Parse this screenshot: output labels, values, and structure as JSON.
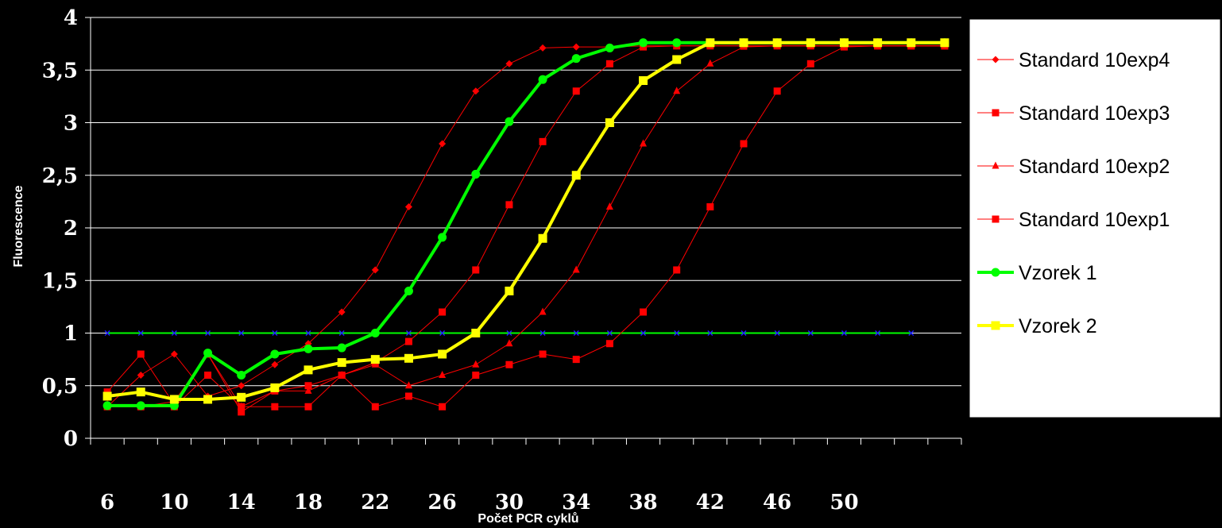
{
  "chart_data": {
    "type": "line",
    "title": "",
    "xlabel": "Počet PCR cyklů",
    "ylabel": "Fluorescence",
    "ylim": [
      0,
      4
    ],
    "xlim": [
      5,
      57
    ],
    "yticks": [
      {
        "value": 0,
        "label": "0"
      },
      {
        "value": 0.5,
        "label": "0,5"
      },
      {
        "value": 1,
        "label": "1"
      },
      {
        "value": 1.5,
        "label": "1,5"
      },
      {
        "value": 2,
        "label": "2"
      },
      {
        "value": 2.5,
        "label": "2,5"
      },
      {
        "value": 3,
        "label": "3"
      },
      {
        "value": 3.5,
        "label": "3,5"
      },
      {
        "value": 4,
        "label": "4"
      }
    ],
    "xticklabels": [
      {
        "value": 6,
        "label": "6"
      },
      {
        "value": 10,
        "label": "10"
      },
      {
        "value": 14,
        "label": "14"
      },
      {
        "value": 18,
        "label": "18"
      },
      {
        "value": 22,
        "label": "22"
      },
      {
        "value": 26,
        "label": "26"
      },
      {
        "value": 30,
        "label": "30"
      },
      {
        "value": 34,
        "label": "34"
      },
      {
        "value": 38,
        "label": "38"
      },
      {
        "value": 42,
        "label": "42"
      },
      {
        "value": 46,
        "label": "46"
      },
      {
        "value": 50,
        "label": "50"
      }
    ],
    "grid": true,
    "legend_position": "right",
    "x": [
      6,
      8,
      10,
      12,
      14,
      16,
      18,
      20,
      22,
      24,
      26,
      28,
      30,
      32,
      34,
      36,
      38,
      40,
      42,
      44,
      46,
      48,
      50,
      52,
      54,
      56
    ],
    "series": [
      {
        "name": "Standard 10exp4",
        "color": "#ff0000",
        "marker": "diamond",
        "width": 1,
        "values": [
          0.3,
          0.6,
          0.8,
          0.4,
          0.5,
          0.7,
          0.9,
          1.2,
          1.6,
          2.2,
          2.8,
          3.3,
          3.56,
          3.71,
          3.72,
          3.72,
          3.73,
          3.73,
          3.73,
          3.73,
          3.73,
          3.73,
          3.73,
          3.73,
          3.73,
          3.73
        ]
      },
      {
        "name": "Standard 10exp3",
        "color": "#ff0000",
        "marker": "square",
        "width": 1,
        "values": [
          0.44,
          0.8,
          0.32,
          0.8,
          0.25,
          0.45,
          0.5,
          0.6,
          0.72,
          0.92,
          1.2,
          1.6,
          2.22,
          2.82,
          3.3,
          3.56,
          3.72,
          3.73,
          3.73,
          3.73,
          3.73,
          3.73,
          3.73,
          3.73,
          3.73,
          3.73
        ]
      },
      {
        "name": "Standard 10exp2",
        "color": "#ff0000",
        "marker": "triangle",
        "width": 1,
        "values": [
          0.32,
          0.3,
          0.35,
          0.8,
          0.3,
          0.45,
          0.45,
          0.6,
          0.7,
          0.5,
          0.6,
          0.7,
          0.9,
          1.2,
          1.6,
          2.2,
          2.8,
          3.3,
          3.56,
          3.72,
          3.73,
          3.73,
          3.73,
          3.73,
          3.73,
          3.73
        ]
      },
      {
        "name": "Standard 10exp1",
        "color": "#ff0000",
        "marker": "square",
        "width": 1,
        "values": [
          0.3,
          0.3,
          0.3,
          0.6,
          0.3,
          0.3,
          0.3,
          0.6,
          0.3,
          0.4,
          0.3,
          0.6,
          0.7,
          0.8,
          0.75,
          0.9,
          1.2,
          1.6,
          2.2,
          2.8,
          3.3,
          3.56,
          3.72,
          3.73,
          3.73,
          3.73
        ]
      },
      {
        "name": "Vzorek 1",
        "color": "#00ff00",
        "marker": "circle",
        "width": 4,
        "values": [
          0.31,
          0.31,
          0.31,
          0.81,
          0.6,
          0.8,
          0.85,
          0.86,
          1.0,
          1.4,
          1.91,
          2.51,
          3.01,
          3.41,
          3.61,
          3.71,
          3.76,
          3.76,
          3.76,
          3.76,
          3.76,
          3.76,
          3.76,
          3.76,
          3.76,
          3.76
        ]
      },
      {
        "name": "Vzorek 2",
        "color": "#ffff00",
        "marker": "square",
        "width": 4,
        "values": [
          0.4,
          0.44,
          0.37,
          0.37,
          0.39,
          0.48,
          0.65,
          0.72,
          0.75,
          0.76,
          0.8,
          1.0,
          1.4,
          1.9,
          2.5,
          3.0,
          3.4,
          3.6,
          3.76,
          3.76,
          3.76,
          3.76,
          3.76,
          3.76,
          3.76,
          3.76
        ]
      }
    ],
    "threshold": {
      "value": 1,
      "color": "#00ff00",
      "marker_color": "#1e1eff",
      "x": [
        6,
        8,
        10,
        12,
        14,
        16,
        18,
        20,
        22,
        24,
        26,
        28,
        30,
        32,
        34,
        36,
        38,
        40,
        42,
        44,
        46,
        48,
        50,
        52,
        54
      ]
    }
  }
}
